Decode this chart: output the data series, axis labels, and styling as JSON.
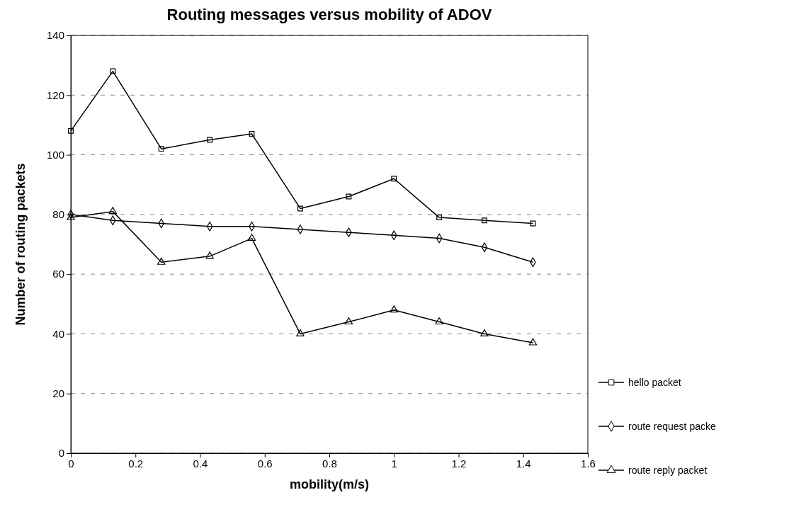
{
  "chart_data": {
    "type": "line",
    "title": "Routing messages versus mobility of ADOV",
    "xlabel": "mobility(m/s)",
    "ylabel": "Number of routing packets",
    "xlim": [
      0,
      1.6
    ],
    "xticks": [
      0,
      0.2,
      0.4,
      0.6,
      0.8,
      1,
      1.2,
      1.4,
      1.6
    ],
    "ylim": [
      0,
      140
    ],
    "yticks": [
      0,
      20,
      40,
      60,
      80,
      100,
      120,
      140
    ],
    "x": [
      0,
      0.13,
      0.28,
      0.43,
      0.56,
      0.71,
      0.86,
      1.0,
      1.14,
      1.28,
      1.43
    ],
    "series": [
      {
        "name": "hello packet",
        "color": "#000000",
        "marker": "square",
        "values": [
          108,
          128,
          102,
          105,
          107,
          82,
          86,
          92,
          79,
          78,
          77
        ]
      },
      {
        "name": "route request packe",
        "color": "#000000",
        "marker": "diamond",
        "values": [
          80,
          78,
          77,
          76,
          76,
          75,
          74,
          73,
          72,
          69,
          64
        ]
      },
      {
        "name": "route reply packet",
        "color": "#000000",
        "marker": "triangle",
        "values": [
          79,
          81,
          64,
          66,
          72,
          40,
          44,
          48,
          44,
          40,
          37
        ]
      }
    ],
    "grid": "y",
    "legend": "right",
    "line_style": "solid"
  }
}
